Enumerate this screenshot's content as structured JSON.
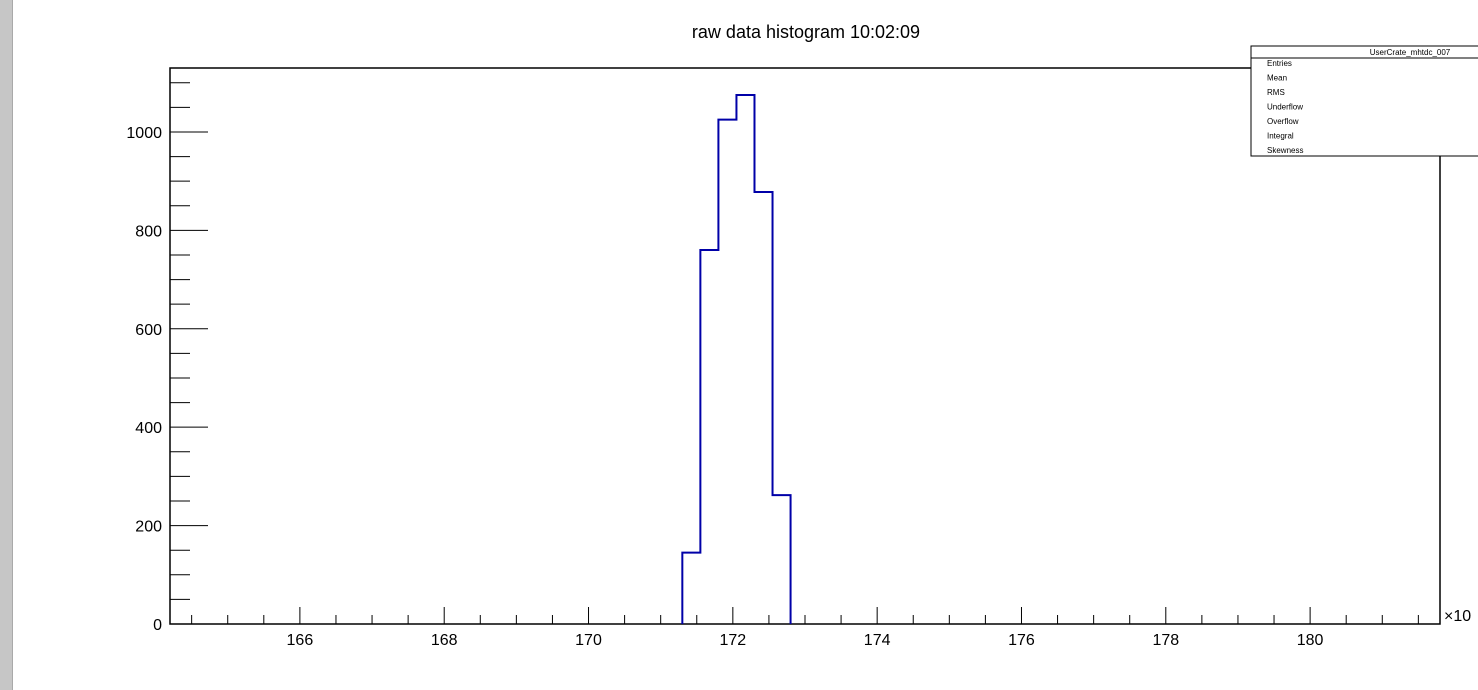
{
  "chart_data": {
    "type": "bar",
    "title": "raw data histogram  10:02:09",
    "xlabel": "",
    "ylabel": "",
    "x_multiplier_label": "×10",
    "xlim": [
      164.2,
      181.8
    ],
    "ylim": [
      0,
      1130
    ],
    "x_ticks": [
      166,
      168,
      170,
      172,
      174,
      176,
      178,
      180
    ],
    "y_ticks": [
      0,
      200,
      400,
      600,
      800,
      1000
    ],
    "bins": [
      {
        "low": 171.3,
        "high": 171.55,
        "value": 145
      },
      {
        "low": 171.55,
        "high": 171.8,
        "value": 760
      },
      {
        "low": 171.8,
        "high": 172.05,
        "value": 1025
      },
      {
        "low": 172.05,
        "high": 172.3,
        "value": 1075
      },
      {
        "low": 172.3,
        "high": 172.55,
        "value": 878
      },
      {
        "low": 172.55,
        "high": 172.8,
        "value": 262
      }
    ],
    "line_color": "#0000a8",
    "grid": false,
    "legend_position": "top-right"
  },
  "stats_box": {
    "title": "UserCrate_mhtdc_007",
    "rows": [
      "Entries",
      "Mean",
      "RMS",
      "Underflow",
      "Overflow",
      "Integral",
      "Skewness"
    ]
  }
}
